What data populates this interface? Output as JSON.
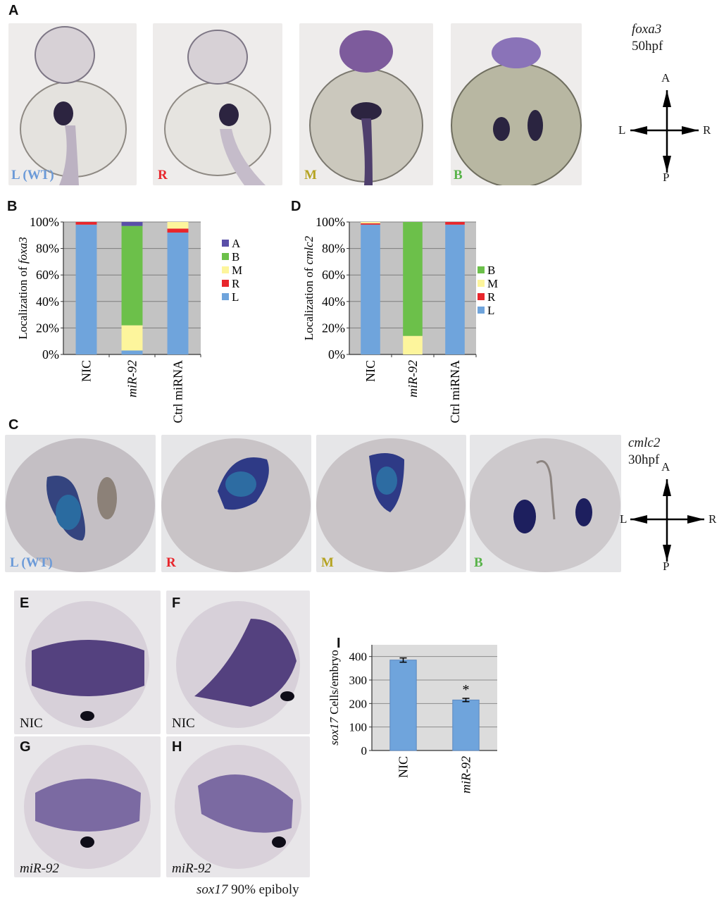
{
  "panels": {
    "A": {
      "label": "A",
      "gene": "foxa3",
      "stage": "50hpf",
      "images": [
        {
          "label": "L (WT)",
          "color": "#6b9ad8"
        },
        {
          "label": "R",
          "color": "#e8262c"
        },
        {
          "label": "M",
          "color": "#b5a321"
        },
        {
          "label": "B",
          "color": "#59b34a"
        }
      ]
    },
    "B": {
      "label": "B"
    },
    "C": {
      "label": "C",
      "gene": "cmlc2",
      "stage": "30hpf",
      "images": [
        {
          "label": "L (WT)",
          "color": "#6b9ad8"
        },
        {
          "label": "R",
          "color": "#e8262c"
        },
        {
          "label": "M",
          "color": "#b5a321"
        },
        {
          "label": "B",
          "color": "#59b34a"
        }
      ]
    },
    "D": {
      "label": "D"
    },
    "E": {
      "label": "E",
      "caption": "NIC"
    },
    "F": {
      "label": "F",
      "caption": "NIC"
    },
    "G": {
      "label": "G",
      "caption": "miR-92"
    },
    "H": {
      "label": "H",
      "caption": "miR-92"
    },
    "I": {
      "label": "I"
    },
    "EH_caption": {
      "gene": "sox17",
      "text": "90% epiboly"
    }
  },
  "axes_compass": {
    "A": "A",
    "P": "P",
    "L": "L",
    "R": "R"
  },
  "chart_data": [
    {
      "id": "B",
      "type": "bar",
      "stacked": true,
      "ylabel_prefix": "Localization of ",
      "ylabel_gene": "foxa3",
      "categories": [
        "NIC",
        "miR-92",
        "Ctrl miRNA"
      ],
      "category_italic": [
        false,
        true,
        false
      ],
      "ytick_labels": [
        "0%",
        "20%",
        "40%",
        "60%",
        "80%",
        "100%"
      ],
      "ylim": [
        0,
        100
      ],
      "grid": true,
      "legend_position": "right",
      "series": [
        {
          "name": "L",
          "color": "#6fa4dc",
          "values": [
            98,
            3,
            92
          ]
        },
        {
          "name": "R",
          "color": "#e8262c",
          "values": [
            2,
            0,
            3
          ]
        },
        {
          "name": "M",
          "color": "#fdf59c",
          "values": [
            0,
            19,
            5
          ]
        },
        {
          "name": "B",
          "color": "#6cc04a",
          "values": [
            0,
            75,
            0
          ]
        },
        {
          "name": "A",
          "color": "#5a4fa8",
          "values": [
            0,
            3,
            0
          ]
        }
      ],
      "legend_order": [
        "A",
        "B",
        "M",
        "R",
        "L"
      ]
    },
    {
      "id": "D",
      "type": "bar",
      "stacked": true,
      "ylabel_prefix": "Localization of ",
      "ylabel_gene": "cmlc2",
      "categories": [
        "NIC",
        "miR-92",
        "Ctrl miRNA"
      ],
      "category_italic": [
        false,
        true,
        false
      ],
      "ytick_labels": [
        "0%",
        "20%",
        "40%",
        "60%",
        "80%",
        "100%"
      ],
      "ylim": [
        0,
        100
      ],
      "grid": true,
      "legend_position": "right",
      "series": [
        {
          "name": "L",
          "color": "#6fa4dc",
          "values": [
            98,
            0,
            98
          ]
        },
        {
          "name": "R",
          "color": "#e8262c",
          "values": [
            1,
            0,
            2
          ]
        },
        {
          "name": "M",
          "color": "#fdf59c",
          "values": [
            1,
            14,
            0
          ]
        },
        {
          "name": "B",
          "color": "#6cc04a",
          "values": [
            0,
            86,
            0
          ]
        }
      ],
      "legend_order": [
        "B",
        "M",
        "R",
        "L"
      ]
    },
    {
      "id": "I",
      "type": "bar",
      "ylabel_gene": "sox17",
      "ylabel_suffix": " Cells/embryo",
      "categories": [
        "NIC",
        "miR-92"
      ],
      "category_italic": [
        false,
        true
      ],
      "values": [
        385,
        215
      ],
      "errors": [
        9,
        7
      ],
      "annotations": [
        "",
        "*"
      ],
      "yticks": [
        0,
        100,
        200,
        300,
        400
      ],
      "ylim": [
        0,
        450
      ],
      "grid": true,
      "color": "#6fa4dc"
    }
  ]
}
